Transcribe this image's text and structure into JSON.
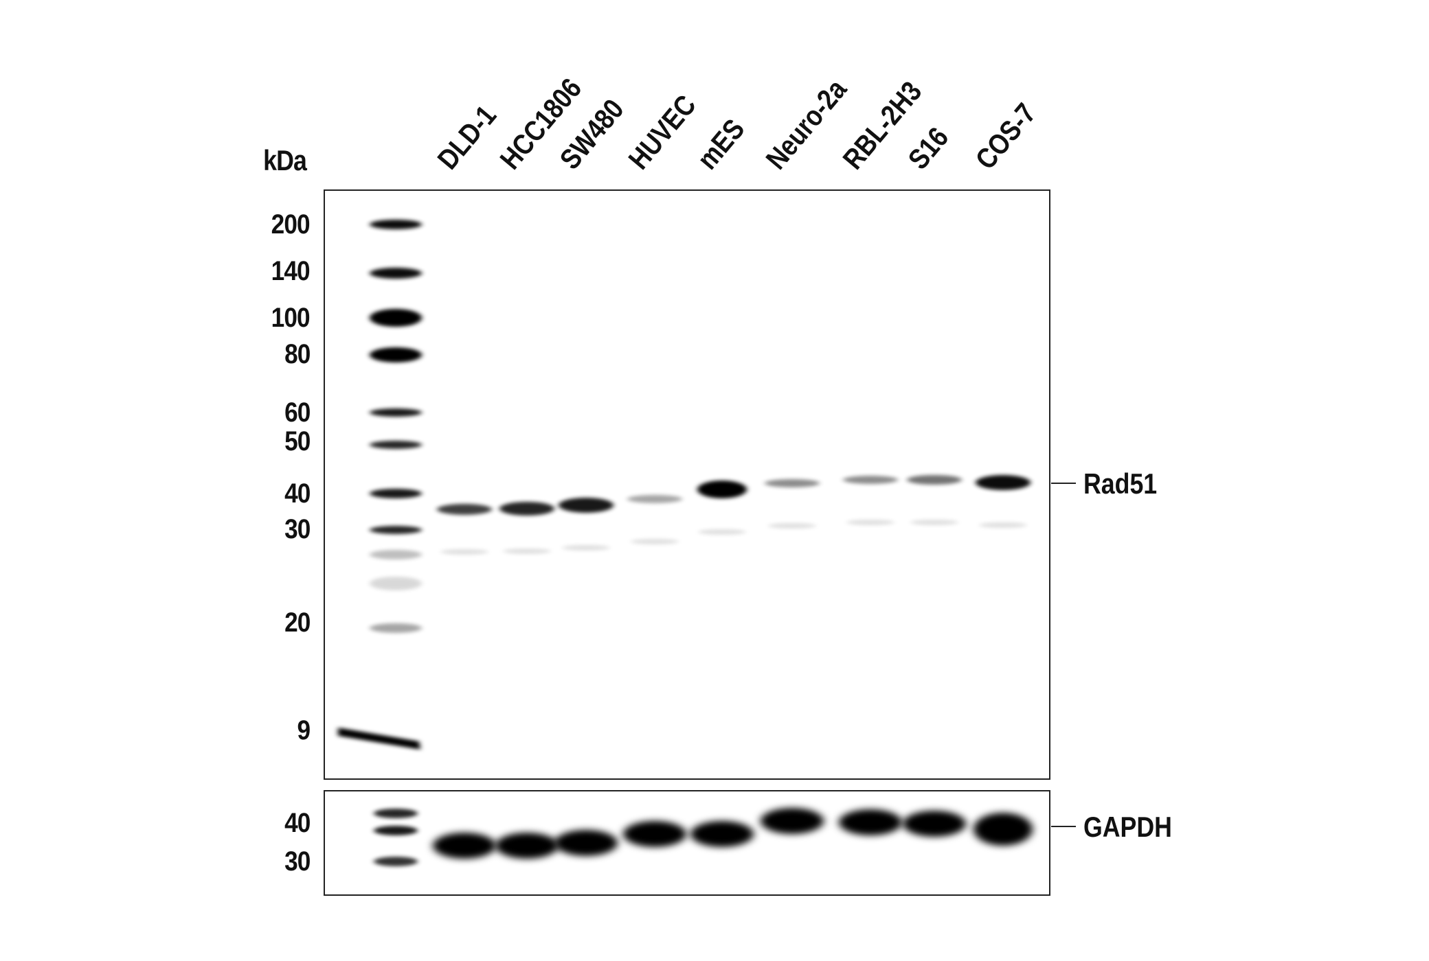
{
  "units_label": "kDa",
  "lanes": [
    "DLD-1",
    "HCC1806",
    "SW480",
    "HUVEC",
    "mES",
    "Neuro-2a",
    "RBL-2H3",
    "S16",
    "COS-7"
  ],
  "main_markers": [
    "200",
    "140",
    "100",
    "80",
    "60",
    "50",
    "40",
    "30",
    "20",
    "9"
  ],
  "gapdh_markers": [
    "40",
    "30"
  ],
  "targets": {
    "main": "Rad51",
    "loading": "GAPDH"
  },
  "rad51_band_intensity": [
    0.75,
    0.85,
    0.9,
    0.35,
    1.0,
    0.45,
    0.45,
    0.55,
    0.95
  ],
  "gapdh_band_intensity": [
    1,
    1,
    1,
    1,
    1,
    1,
    1,
    1,
    1
  ]
}
